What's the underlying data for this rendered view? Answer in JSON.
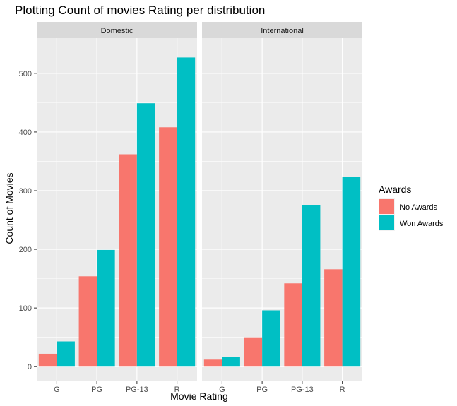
{
  "chart_data": {
    "type": "bar",
    "title": "Plotting Count of movies Rating per distribution",
    "xlabel": "Movie Rating",
    "ylabel": "Count of Movies",
    "categories": [
      "G",
      "PG",
      "PG-13",
      "R"
    ],
    "ylim": [
      -25,
      560
    ],
    "yticks": [
      0,
      100,
      200,
      300,
      400,
      500
    ],
    "grid": true,
    "legend": {
      "title": "Awards",
      "placement": "right",
      "entries": [
        {
          "name": "No Awards",
          "color": "#F8766D"
        },
        {
          "name": "Won Awards",
          "color": "#00BFC4"
        }
      ]
    },
    "panels": [
      {
        "label": "Domestic",
        "series": [
          {
            "name": "No Awards",
            "values": [
              22,
              154,
              362,
              408
            ]
          },
          {
            "name": "Won Awards",
            "values": [
              43,
              199,
              449,
              527
            ]
          }
        ]
      },
      {
        "label": "International",
        "series": [
          {
            "name": "No Awards",
            "values": [
              12,
              50,
              142,
              166
            ]
          },
          {
            "name": "Won Awards",
            "values": [
              16,
              96,
              275,
              323
            ]
          }
        ]
      }
    ]
  }
}
